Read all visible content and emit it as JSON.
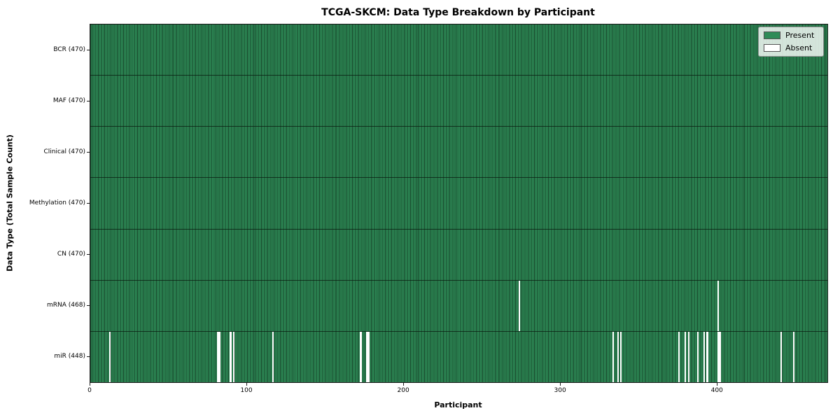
{
  "chart_data": {
    "type": "heatmap",
    "title": "TCGA-SKCM: Data Type Breakdown by Participant",
    "xlabel": "Participant",
    "ylabel": "Data Type (Total Sample Count)",
    "n_participants": 470,
    "x_ticks": [
      0,
      100,
      200,
      300,
      400
    ],
    "xlim": [
      0,
      470
    ],
    "grid": false,
    "colors": {
      "present": "#2e8b57",
      "absent": "#ffffff",
      "bar_edge": "#17452a",
      "row_divider": "#1a1a1a",
      "axis": "#1a1a1a"
    },
    "legend": {
      "position": "upper right",
      "entries": [
        {
          "label": "Present",
          "color": "#2e8b57"
        },
        {
          "label": "Absent",
          "color": "#ffffff"
        }
      ]
    },
    "rows": [
      {
        "label": "BCR (470)",
        "data_type": "BCR",
        "present_count": 470,
        "absent_participants": []
      },
      {
        "label": "MAF (470)",
        "data_type": "MAF",
        "present_count": 470,
        "absent_participants": []
      },
      {
        "label": "Clinical (470)",
        "data_type": "Clinical",
        "present_count": 470,
        "absent_participants": []
      },
      {
        "label": "Methylation (470)",
        "data_type": "Methylation",
        "present_count": 470,
        "absent_participants": []
      },
      {
        "label": "CN (470)",
        "data_type": "CN",
        "present_count": 470,
        "absent_participants": []
      },
      {
        "label": "mRNA (468)",
        "data_type": "mRNA",
        "present_count": 468,
        "absent_participants": [
          273,
          400
        ]
      },
      {
        "label": "miR (448)",
        "data_type": "miR",
        "present_count": 448,
        "absent_participants": [
          12,
          81,
          82,
          89,
          91,
          116,
          172,
          176,
          177,
          333,
          336,
          338,
          375,
          379,
          381,
          387,
          391,
          393,
          400,
          401,
          440,
          448
        ]
      }
    ]
  }
}
